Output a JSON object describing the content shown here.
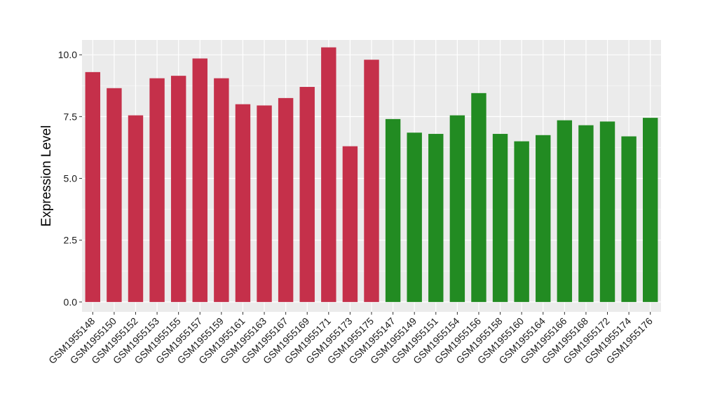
{
  "chart_data": {
    "type": "bar",
    "title": "",
    "xlabel": "",
    "ylabel": "Expression Level",
    "ylim": [
      -0.4,
      10.6
    ],
    "yticks": [
      0.0,
      2.5,
      5.0,
      7.5,
      10.0
    ],
    "ytick_labels": [
      "0.0",
      "2.5",
      "5.0",
      "7.5",
      "10.0"
    ],
    "grid": true,
    "legend": "none",
    "categories": [
      "GSM1955148",
      "GSM1955150",
      "GSM1955152",
      "GSM1955153",
      "GSM1955155",
      "GSM1955157",
      "GSM1955159",
      "GSM1955161",
      "GSM1955163",
      "GSM1955167",
      "GSM1955169",
      "GSM1955171",
      "GSM1955173",
      "GSM1955175",
      "GSM1955147",
      "GSM1955149",
      "GSM1955151",
      "GSM1955154",
      "GSM1955156",
      "GSM1955158",
      "GSM1955160",
      "GSM1955164",
      "GSM1955166",
      "GSM1955168",
      "GSM1955172",
      "GSM1955174",
      "GSM1955176"
    ],
    "values": [
      9.3,
      8.65,
      7.55,
      9.05,
      9.15,
      9.85,
      9.05,
      8.0,
      7.95,
      8.25,
      8.7,
      10.3,
      6.3,
      9.8,
      7.4,
      6.85,
      6.8,
      7.55,
      8.45,
      6.8,
      6.5,
      6.75,
      7.35,
      7.15,
      7.3,
      6.7,
      7.45
    ],
    "group_sizes": [
      14,
      13
    ],
    "colors": {
      "group1": "#c5304a",
      "group2": "#228b22",
      "panel_bg": "#ebebeb",
      "grid_major": "#ffffff",
      "grid_minor": "#f5f5f5",
      "tick": "#333333"
    }
  }
}
